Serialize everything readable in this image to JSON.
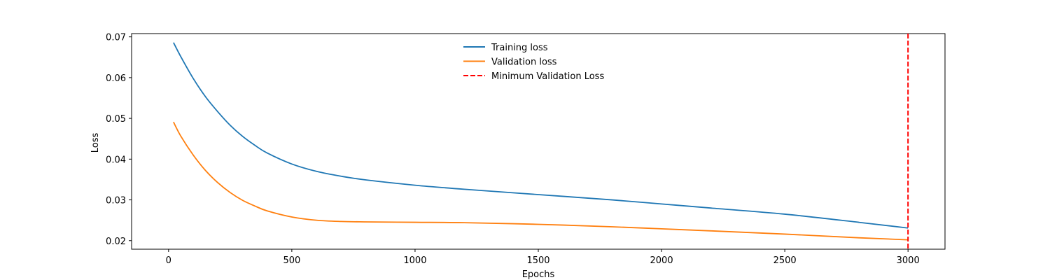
{
  "chart_data": {
    "type": "line",
    "title": "",
    "xlabel": "Epochs",
    "ylabel": "Loss",
    "xlim": [
      -150,
      3150
    ],
    "ylim": [
      0.0179,
      0.0708
    ],
    "x_ticks": [
      0,
      500,
      1000,
      1500,
      2000,
      2500,
      3000
    ],
    "x_tick_labels": [
      "0",
      "500",
      "1000",
      "1500",
      "2000",
      "2500",
      "3000"
    ],
    "y_ticks": [
      0.02,
      0.03,
      0.04,
      0.05,
      0.06,
      0.07
    ],
    "y_tick_labels": [
      "0.02",
      "0.03",
      "0.04",
      "0.05",
      "0.06",
      "0.07"
    ],
    "grid": false,
    "legend_position": "upper-center",
    "series": [
      {
        "name": "Training loss",
        "color": "#1f77b4",
        "style": "solid",
        "x": [
          20,
          50,
          100,
          150,
          200,
          250,
          300,
          350,
          400,
          500,
          600,
          700,
          800,
          1000,
          1200,
          1500,
          1800,
          2000,
          2200,
          2500,
          2800,
          3000
        ],
        "y": [
          0.0686,
          0.0651,
          0.0598,
          0.0553,
          0.0516,
          0.0483,
          0.0456,
          0.0434,
          0.0415,
          0.0388,
          0.037,
          0.0358,
          0.0349,
          0.0336,
          0.0326,
          0.0313,
          0.03,
          0.029,
          0.028,
          0.0265,
          0.0245,
          0.0231
        ]
      },
      {
        "name": "Validation loss",
        "color": "#ff7f0e",
        "style": "solid",
        "x": [
          20,
          50,
          100,
          150,
          200,
          250,
          300,
          350,
          400,
          500,
          600,
          700,
          800,
          1000,
          1200,
          1500,
          1800,
          2000,
          2200,
          2500,
          2800,
          3000
        ],
        "y": [
          0.0491,
          0.0456,
          0.041,
          0.0372,
          0.0342,
          0.0318,
          0.0299,
          0.0285,
          0.0273,
          0.0258,
          0.025,
          0.0247,
          0.0246,
          0.0245,
          0.0244,
          0.024,
          0.0234,
          0.0229,
          0.0224,
          0.0216,
          0.0207,
          0.0202
        ]
      },
      {
        "name": "Minimum Validation Loss",
        "color": "#ff0000",
        "style": "dashed",
        "vline_x": 3000
      }
    ]
  }
}
